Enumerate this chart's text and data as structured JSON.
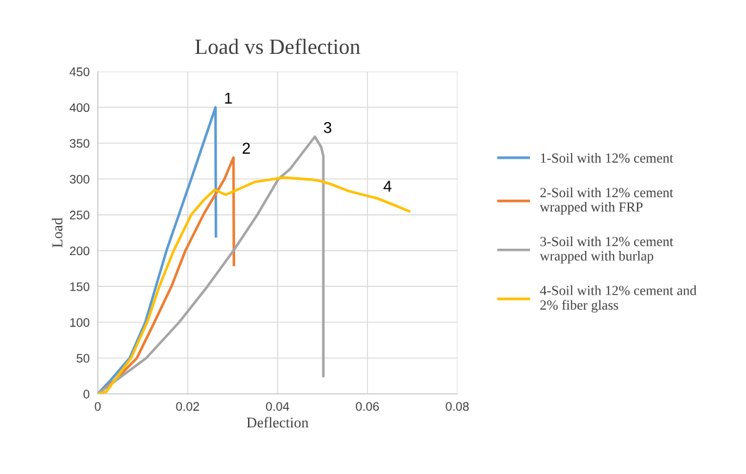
{
  "chart_data": {
    "type": "line",
    "title": "Load vs Deflection",
    "xlabel": "Deflection",
    "ylabel": "Load",
    "xlim": [
      0,
      0.08
    ],
    "xticks": [
      0,
      0.02,
      0.04,
      0.06,
      0.08
    ],
    "ylim": [
      0,
      450
    ],
    "yticks": [
      0,
      50,
      100,
      150,
      200,
      250,
      300,
      350,
      400,
      450
    ],
    "grid": true,
    "legend": "right",
    "line_style": "solid",
    "marker": "none",
    "series": [
      {
        "name": "1-Soil with 12% cement",
        "color": "#5b9bd5",
        "x": [
          0,
          0.003,
          0.0071,
          0.0106,
          0.0153,
          0.0208,
          0.0262,
          0.0263
        ],
        "values": [
          0,
          20,
          50,
          100,
          200,
          300,
          400,
          220
        ]
      },
      {
        "name": "2-Soil with 12% cement\nwrapped with FRP",
        "color": "#ed7d31",
        "x": [
          0,
          0.004,
          0.0087,
          0.0126,
          0.0164,
          0.0195,
          0.0235,
          0.0282,
          0.0302,
          0.0303
        ],
        "values": [
          0,
          20,
          50,
          100,
          150,
          200,
          250,
          300,
          330,
          180
        ]
      },
      {
        "name": "3-Soil with 12% cement\nwrapped with burlap",
        "color": "#a5a5a5",
        "x": [
          0,
          0.0108,
          0.0181,
          0.0244,
          0.0302,
          0.0355,
          0.0402,
          0.0428,
          0.0483,
          0.0497,
          0.0502,
          0.0502
        ],
        "values": [
          0,
          50,
          100,
          150,
          200,
          250,
          300,
          314,
          359,
          345,
          332,
          25
        ]
      },
      {
        "name": "4-Soil with 12% cement and\n2% fiber glass",
        "color": "#ffc000",
        "x": [
          0,
          0.0019,
          0.0074,
          0.011,
          0.0137,
          0.0169,
          0.0208,
          0.0235,
          0.026,
          0.0285,
          0.035,
          0.0413,
          0.048,
          0.0497,
          0.0518,
          0.0559,
          0.0622,
          0.0654,
          0.0693
        ],
        "values": [
          0,
          3,
          50,
          100,
          150,
          200,
          250,
          270,
          285,
          278,
          296,
          302,
          299,
          297,
          293,
          283,
          273,
          265,
          255
        ]
      }
    ],
    "annotations": [
      "1",
      "2",
      "3",
      "4"
    ]
  }
}
